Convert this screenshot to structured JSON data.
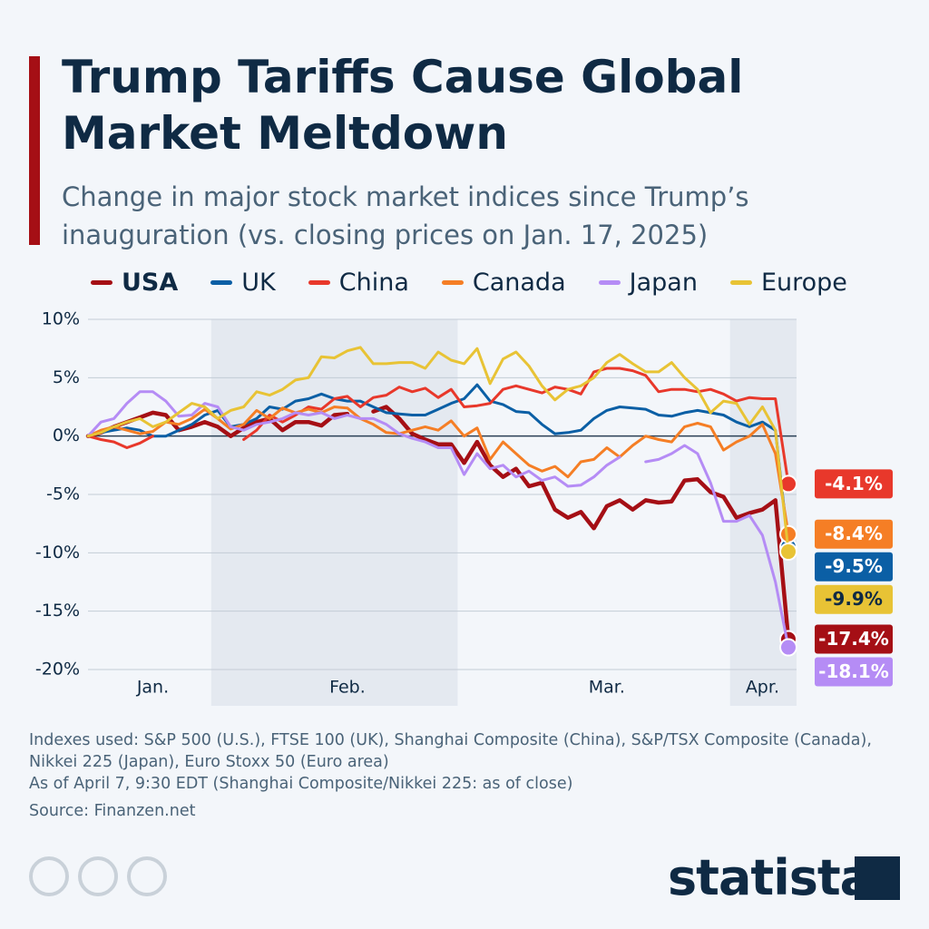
{
  "chart_data": {
    "type": "line",
    "title": "Trump Tariffs Cause Global Market Meltdown",
    "subtitle": "Change in major stock market indices since Trump’s inauguration (vs. closing prices on Jan. 17, 2025)",
    "categories": [
      null,
      null,
      null,
      null,
      null,
      "Jan.",
      null,
      null,
      null,
      null,
      null,
      null,
      null,
      null,
      null,
      null,
      null,
      null,
      null,
      null,
      "Feb.",
      null,
      null,
      null,
      null,
      null,
      null,
      null,
      null,
      null,
      null,
      null,
      null,
      null,
      null,
      null,
      null,
      null,
      null,
      null,
      "Mar.",
      null,
      null,
      null,
      null,
      null,
      null,
      null,
      null,
      null,
      null,
      null,
      "Apr.",
      null,
      null
    ],
    "ylim": [
      -20,
      10
    ],
    "yticks": [
      {
        "value": -20,
        "label": "-20%"
      },
      {
        "value": -15,
        "label": "-15%"
      },
      {
        "value": -10,
        "label": "-10%"
      },
      {
        "value": -5,
        "label": "-5%"
      },
      {
        "value": 0,
        "label": "0%"
      },
      {
        "value": 5,
        "label": "5%"
      },
      {
        "value": 10,
        "label": "10%"
      }
    ],
    "grid": true,
    "series": [
      {
        "name": "USA",
        "color": "#a50f15",
        "end_label": "-17.4%",
        "values": [
          0,
          0.3,
          0.8,
          1.2,
          1.6,
          2,
          1.8,
          0.5,
          0.8,
          1.2,
          0.8,
          0,
          0.7,
          1.2,
          1.5,
          0.5,
          1.2,
          1.2,
          0.9,
          1.8,
          1.9,
          null,
          2.1,
          2.5,
          1.5,
          0.2,
          -0.3,
          -0.7,
          -0.7,
          -2.3,
          -0.5,
          -2.5,
          -3.5,
          -2.8,
          -4.3,
          -4,
          -6.3,
          -7,
          -6.5,
          -7.9,
          -6,
          -5.5,
          -6.3,
          -5.5,
          -5.7,
          -5.6,
          -3.8,
          -3.7,
          -4.8,
          -5.2,
          -7,
          -6.6,
          -6.3,
          -5.5,
          -17.4
        ]
      },
      {
        "name": "UK",
        "color": "#0b5fa5",
        "end_label": "-9.5%",
        "values": [
          0,
          0.3,
          0.5,
          0.7,
          0.5,
          0,
          0,
          0.5,
          1,
          1.8,
          2.2,
          0.8,
          1,
          1.5,
          2.5,
          2.3,
          3,
          3.2,
          3.6,
          3.2,
          3,
          3,
          2.5,
          2,
          1.9,
          1.8,
          1.8,
          2.3,
          2.8,
          3.2,
          4.4,
          3,
          2.7,
          2.1,
          2,
          1,
          0.2,
          0.3,
          0.5,
          1.5,
          2.2,
          2.5,
          2.4,
          2.3,
          1.8,
          1.7,
          2,
          2.2,
          2,
          1.8,
          1.2,
          0.8,
          1.2,
          0.5,
          -9.5
        ]
      },
      {
        "name": "China",
        "color": "#e8382b",
        "end_label": "-4.1%",
        "values": [
          0,
          -0.3,
          -0.5,
          -1,
          -0.6,
          0,
          null,
          null,
          null,
          null,
          null,
          null,
          -0.3,
          0.5,
          1.8,
          1.2,
          1.8,
          2.5,
          2.3,
          3.2,
          3.4,
          2.5,
          3.3,
          3.5,
          4.2,
          3.8,
          4.1,
          3.3,
          4,
          2.5,
          2.6,
          2.8,
          4,
          4.3,
          4,
          3.7,
          4.2,
          4,
          3.6,
          5.5,
          5.8,
          5.8,
          5.6,
          5.2,
          3.8,
          4,
          4,
          3.8,
          4,
          3.6,
          3,
          3.3,
          3.2,
          3.2,
          -4.1
        ]
      },
      {
        "name": "Canada",
        "color": "#f57e25",
        "end_label": "-8.4%",
        "values": [
          0,
          0.5,
          0.8,
          0.5,
          0.2,
          0.4,
          1.2,
          1,
          1.5,
          2.3,
          1.5,
          0.6,
          1,
          2.2,
          1.5,
          2.4,
          2,
          2.3,
          2,
          2.5,
          2.4,
          1.5,
          1,
          0.3,
          0.2,
          0.5,
          0.8,
          0.5,
          1.3,
          0,
          0.7,
          -2,
          -0.5,
          -1.5,
          -2.5,
          -3,
          -2.6,
          -3.5,
          -2.2,
          -2,
          -1,
          -1.8,
          -0.8,
          0,
          -0.3,
          -0.5,
          0.8,
          1.1,
          0.8,
          -1.2,
          -0.5,
          0,
          1,
          -1.5,
          -8.4
        ]
      },
      {
        "name": "Japan",
        "color": "#b58cf5",
        "end_label": "-18.1%",
        "values": [
          0,
          1.2,
          1.5,
          2.8,
          3.8,
          3.8,
          3,
          1.7,
          1.8,
          2.8,
          2.5,
          0.8,
          0.5,
          1,
          1.2,
          1.5,
          2,
          1.8,
          2,
          1.5,
          1.8,
          1.5,
          1.5,
          1,
          0.2,
          -0.2,
          -0.5,
          -1,
          -1,
          -3.3,
          -1.5,
          -2.8,
          -2.5,
          -3.5,
          -3,
          -3.8,
          -3.5,
          -4.3,
          -4.2,
          -3.5,
          -2.5,
          -1.8,
          null,
          -2.2,
          -2,
          -1.5,
          -0.8,
          -1.5,
          -4,
          -7.3,
          -7.3,
          -6.8,
          -8.5,
          -12.5,
          -18.1
        ]
      },
      {
        "name": "Europe",
        "color": "#e8c335",
        "end_label": "-9.9%",
        "values": [
          0,
          0.3,
          0.8,
          1.2,
          1.5,
          0.8,
          1.2,
          2,
          2.8,
          2.5,
          1.5,
          2.2,
          2.5,
          3.8,
          3.5,
          4,
          4.8,
          5,
          6.8,
          6.7,
          7.3,
          7.6,
          6.2,
          6.2,
          6.3,
          6.3,
          5.8,
          7.2,
          6.5,
          6.2,
          7.5,
          4.5,
          6.6,
          7.2,
          6,
          4.3,
          3.1,
          4,
          4.3,
          5,
          6.3,
          7,
          6.2,
          5.5,
          5.5,
          6.3,
          5,
          4,
          2,
          3,
          2.8,
          1,
          2.5,
          0.5,
          -9.9
        ]
      }
    ]
  },
  "footer": {
    "note_indexes": "Indexes used: S&P 500 (U.S.), FTSE 100 (UK), Shanghai Composite (China), S&P/TSX Composite (Canada), Nikkei 225 (Japan), Euro Stoxx 50 (Euro area)",
    "note_date": "As of April 7, 9:30 EDT (Shanghai Composite/Nikkei 225: as of close)",
    "source": "Source: Finanzen.net",
    "brand": "statista"
  }
}
